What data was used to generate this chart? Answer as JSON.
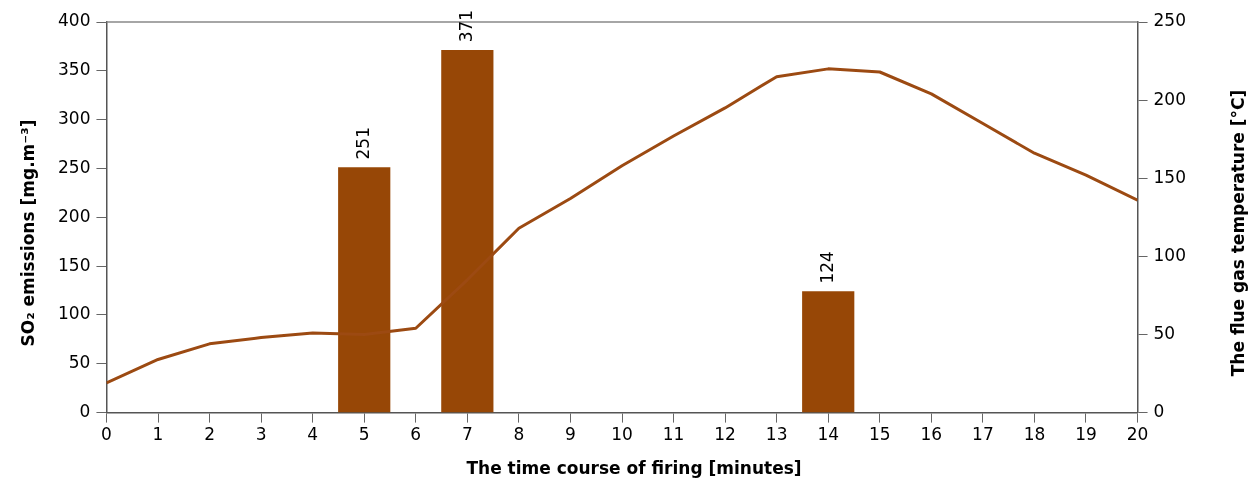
{
  "chart_data": {
    "type": "bar",
    "xlabel": "The time course of firing [minutes]",
    "ylabel": "SO₂ emissions [mg.m⁻³]",
    "y2label": "The flue gas temperature [°C]",
    "xlim": [
      0,
      20
    ],
    "xticks": [
      0,
      1,
      2,
      3,
      4,
      5,
      6,
      7,
      8,
      9,
      10,
      11,
      12,
      13,
      14,
      15,
      16,
      17,
      18,
      19,
      20
    ],
    "ylim": [
      0,
      400
    ],
    "yticks": [
      0,
      50,
      100,
      150,
      200,
      250,
      300,
      350,
      400
    ],
    "y2lim": [
      0,
      250
    ],
    "y2ticks": [
      0,
      50,
      100,
      150,
      200,
      250
    ],
    "grid": false,
    "legend": false,
    "series": [
      {
        "color": "#974706",
        "x": [
          5,
          7,
          14
        ],
        "values": [
          251,
          371,
          124
        ],
        "value_labels": [
          "251",
          "371",
          "124"
        ]
      },
      {
        "type": "line",
        "axis": "y2",
        "color": "#9c4a12",
        "marker": "none",
        "x": [
          0,
          1,
          2,
          3,
          4,
          5,
          6,
          7,
          8,
          9,
          10,
          11,
          12,
          13,
          14,
          15,
          16,
          17,
          18,
          19,
          20
        ],
        "values": [
          19,
          34,
          44,
          48,
          51,
          50,
          54,
          85,
          118,
          137,
          158,
          177,
          195,
          215,
          220,
          218,
          204,
          185,
          166,
          152,
          136
        ]
      }
    ]
  }
}
